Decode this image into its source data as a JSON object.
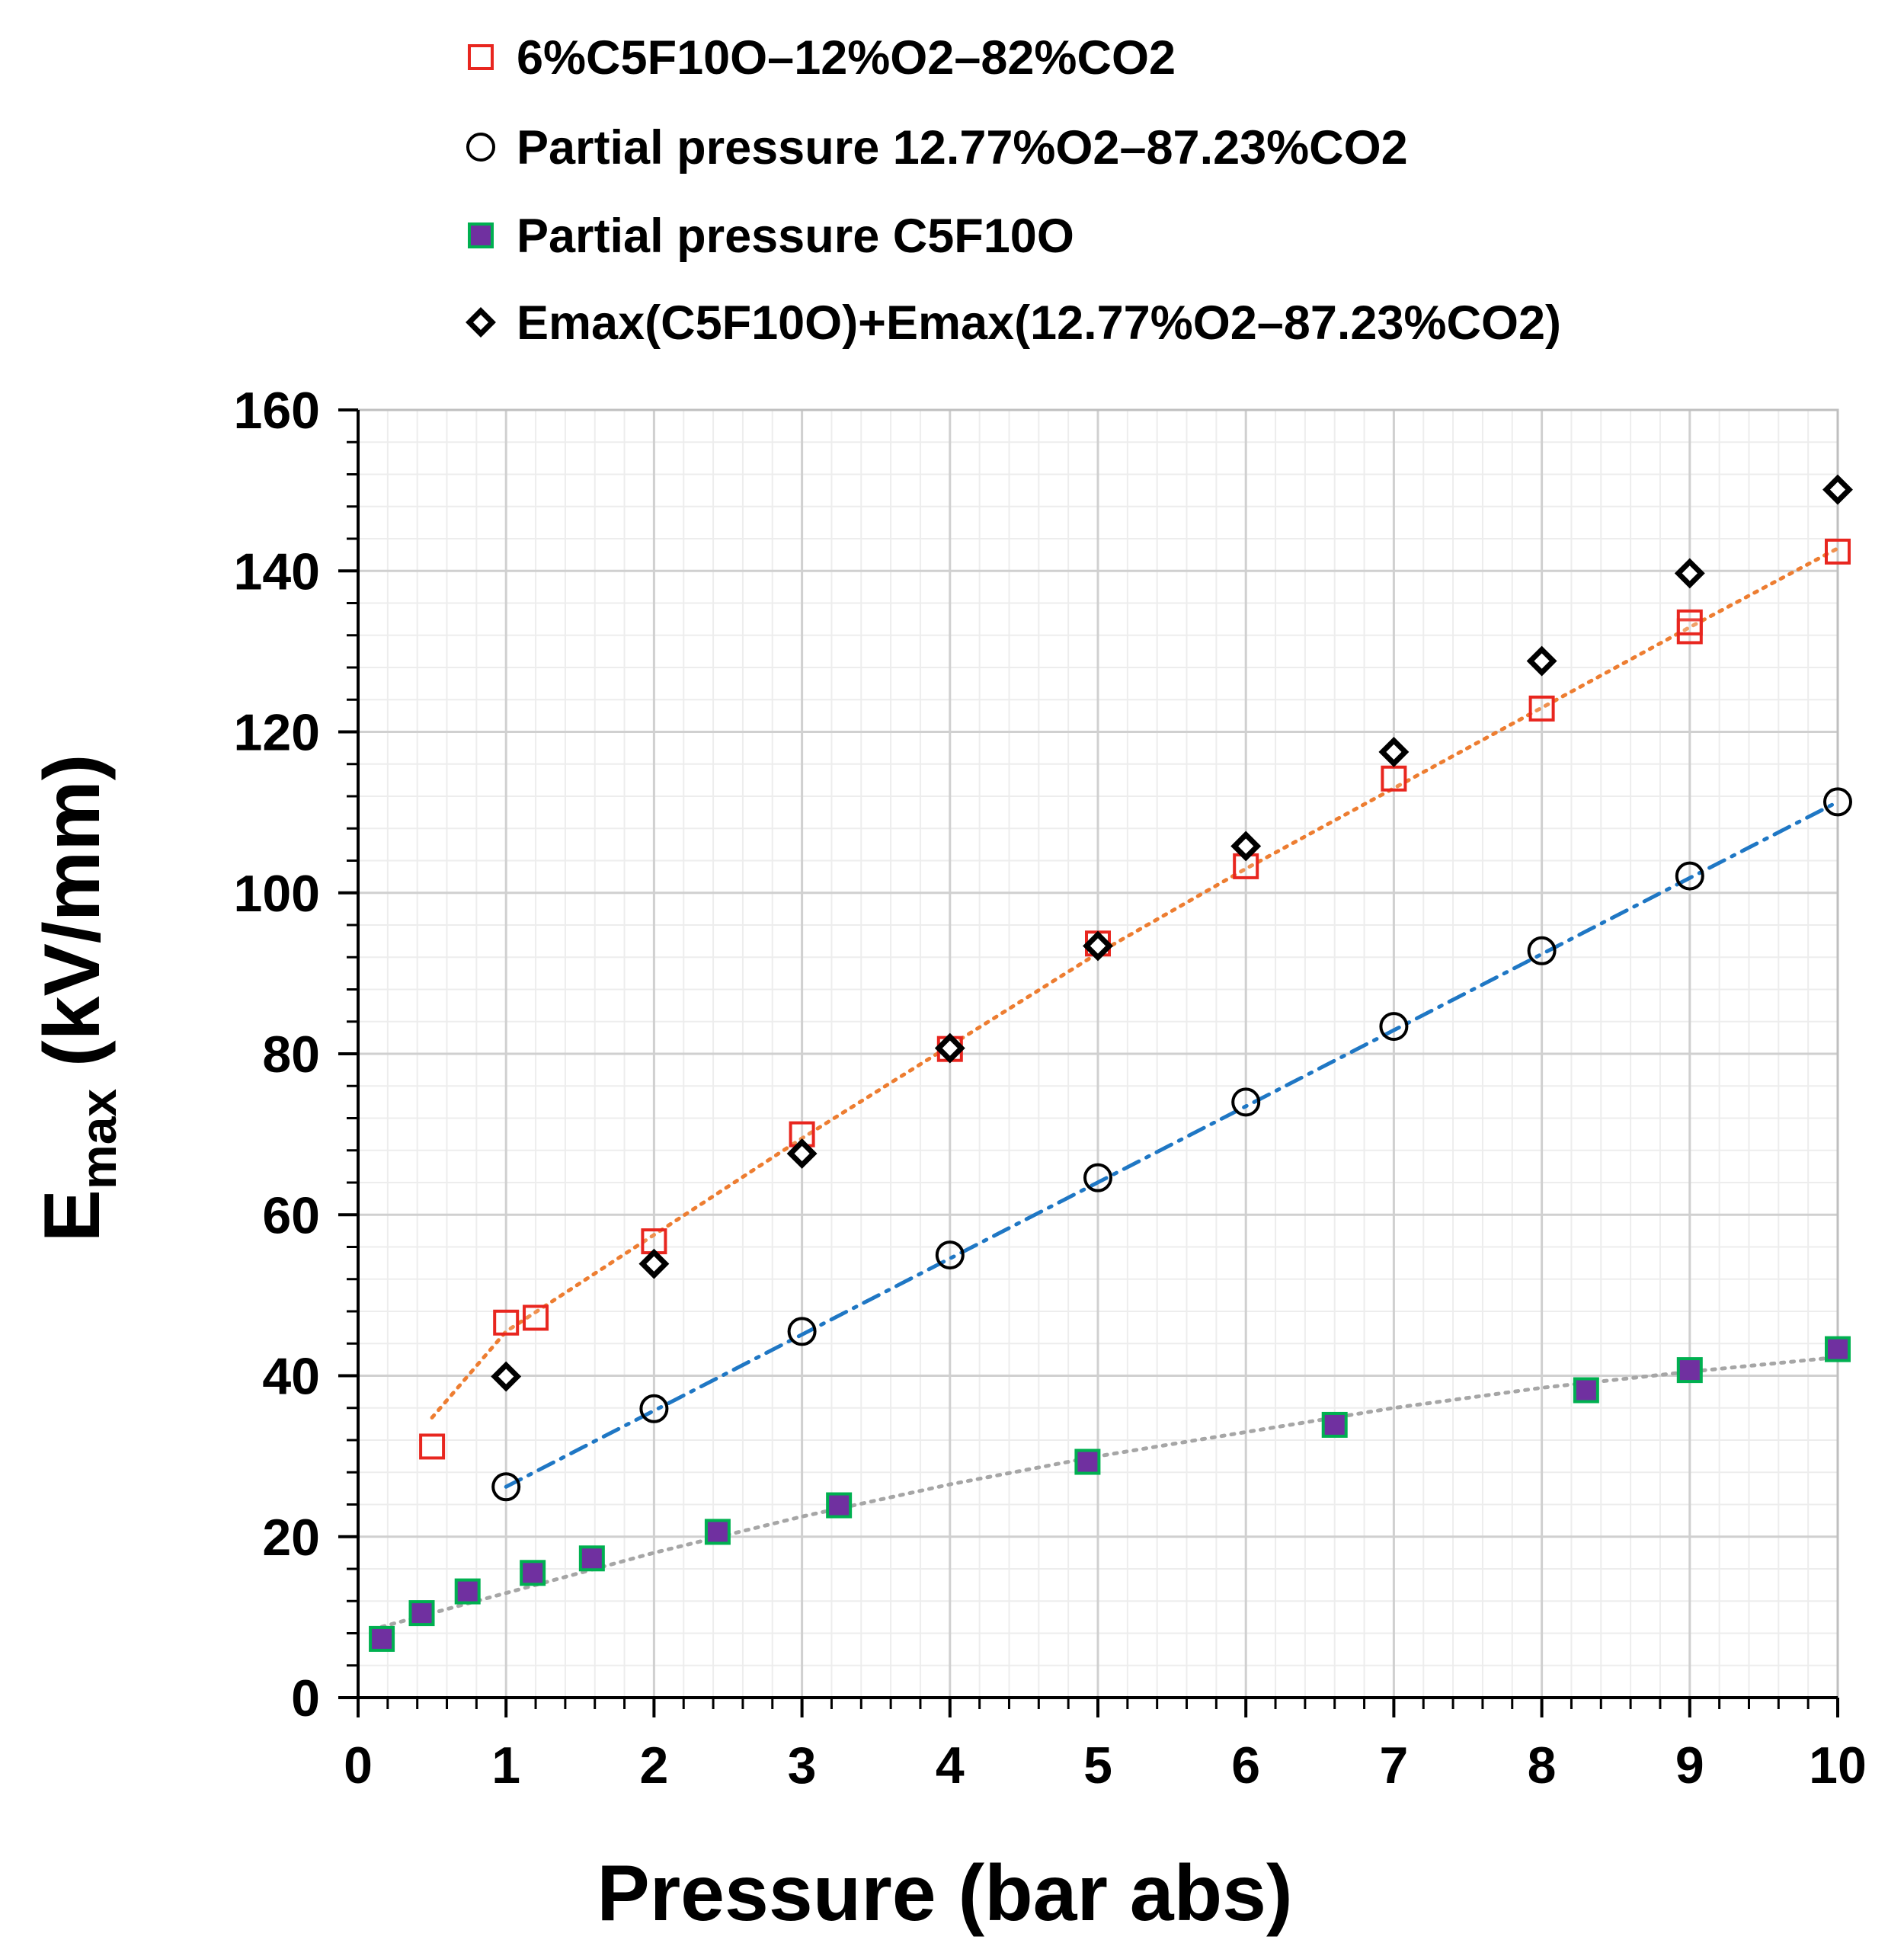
{
  "chart_data": {
    "type": "scatter",
    "title": "",
    "xlabel": "Pressure (bar abs)",
    "ylabel": {
      "main": "E",
      "sub": "max",
      "unit": " (kV/mm)"
    },
    "xlim": [
      0,
      10
    ],
    "ylim": [
      0,
      160
    ],
    "x_ticks": [
      "0",
      "1",
      "2",
      "3",
      "4",
      "5",
      "6",
      "7",
      "8",
      "9",
      "10"
    ],
    "y_ticks": [
      "0",
      "20",
      "40",
      "60",
      "80",
      "100",
      "120",
      "140",
      "160"
    ],
    "grid": true,
    "legend_position": "top",
    "series": [
      {
        "name": "6%C5F10O–12%O2–82%CO2",
        "marker": "open-square",
        "color": "#e8261f",
        "x": [
          0.5,
          1.0,
          1.2,
          2.0,
          3.0,
          4.0,
          5.0,
          6.0,
          7.0,
          8.0,
          9.0,
          9.0,
          10.0
        ],
        "y": [
          31.2,
          46.6,
          47.2,
          56.7,
          70.0,
          80.6,
          93.7,
          103.3,
          114.2,
          122.9,
          132.5,
          133.6,
          142.4
        ]
      },
      {
        "name": "Partial pressure 12.77%O2–87.23%CO2",
        "marker": "open-circle",
        "color": "#000000",
        "x": [
          1,
          2,
          3,
          4,
          5,
          6,
          7,
          8,
          9,
          10
        ],
        "y": [
          26.2,
          35.9,
          45.5,
          55.0,
          64.6,
          74.0,
          83.4,
          92.8,
          102.1,
          111.3
        ]
      },
      {
        "name": "Partial pressure C5F10O",
        "marker": "filled-square",
        "color": "#7030a0",
        "edge_color": "#00b050",
        "x": [
          0.16,
          0.43,
          0.74,
          1.18,
          1.58,
          2.43,
          3.25,
          4.93,
          6.6,
          8.3,
          9.0,
          10.0
        ],
        "y": [
          7.3,
          10.5,
          13.2,
          15.5,
          17.3,
          20.6,
          23.9,
          29.3,
          33.9,
          38.2,
          40.7,
          43.3
        ]
      },
      {
        "name": "Emax(C5F10O)+Emax(12.77%O2–87.23%CO2)",
        "marker": "open-diamond",
        "color": "#000000",
        "x": [
          1,
          2,
          3,
          4,
          5,
          6,
          7,
          8,
          9,
          10
        ],
        "y": [
          39.9,
          53.9,
          67.6,
          80.7,
          93.4,
          105.8,
          117.5,
          128.8,
          139.7,
          150.1
        ]
      }
    ],
    "trendlines": [
      {
        "series": "6%C5F10O–12%O2–82%CO2",
        "style": "dotted",
        "color": "#ed7d31",
        "x": [
          0.5,
          1,
          2,
          3,
          4,
          5,
          6,
          7,
          8,
          9,
          10
        ],
        "y": [
          34.8,
          45.5,
          57.5,
          69.5,
          81.0,
          92.5,
          103.0,
          113.0,
          123.0,
          133.0,
          142.8
        ]
      },
      {
        "series": "Partial pressure 12.77%O2–87.23%CO2",
        "style": "dash-dot",
        "color": "#1f77c4",
        "x": [
          1,
          10
        ],
        "y": [
          26.2,
          111.3
        ]
      },
      {
        "series": "Partial pressure C5F10O",
        "style": "dotted",
        "color": "#a6a6a6",
        "x": [
          0.16,
          1,
          2,
          3,
          4,
          5,
          6,
          7,
          8,
          9,
          10
        ],
        "y": [
          8.8,
          13.0,
          18.0,
          22.5,
          26.5,
          30.0,
          33.0,
          36.0,
          38.5,
          40.5,
          42.3
        ]
      }
    ]
  }
}
